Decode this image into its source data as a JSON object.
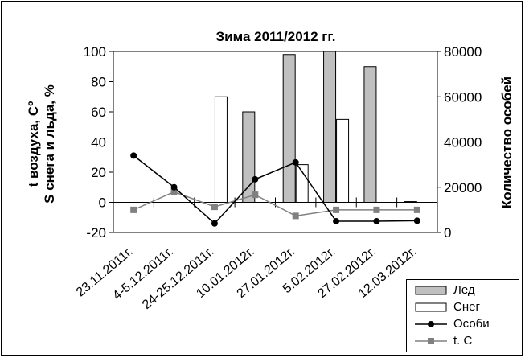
{
  "chart_data": {
    "type": "bar",
    "title": "Зима 2011/2012 гг.",
    "ylabel_left_line1": "t воздуха, Сº",
    "ylabel_left_line2": "S снега и льда, %",
    "ylabel_right": "Количество особей",
    "categories": [
      "23.11.2011г.",
      "4-5.12.2011г.",
      "24-25.12.2011г.",
      "10.01.2012г.",
      "27.01.2012г.",
      "5.02.2012г.",
      "27.02.2012г.",
      "12.03.2012г."
    ],
    "ylim_left": [
      -20,
      100
    ],
    "ylim_right": [
      0,
      80000
    ],
    "yticks_left": [
      "-20",
      "0",
      "20",
      "40",
      "60",
      "80",
      "100"
    ],
    "yticks_right": [
      "0",
      "20000",
      "40000",
      "60000",
      "80000"
    ],
    "series": [
      {
        "name": "Лед",
        "kind": "bar",
        "axis": "left",
        "color": "#c0c0c0",
        "values": [
          0,
          0,
          0,
          60,
          98,
          100,
          90,
          0.5
        ]
      },
      {
        "name": "Снег",
        "kind": "bar",
        "axis": "left",
        "color": "#ffffff",
        "values": [
          0,
          0,
          70,
          0,
          25,
          55,
          0,
          0
        ]
      },
      {
        "name": "Особи",
        "kind": "line",
        "axis": "right",
        "color": "#000000",
        "values": [
          34000,
          20000,
          4000,
          23500,
          31000,
          5000,
          5000,
          5200
        ]
      },
      {
        "name": "t. C",
        "kind": "line",
        "axis": "left",
        "color": "#808080",
        "values": [
          -5,
          7,
          -3,
          5,
          -9,
          -5,
          -5,
          -5
        ]
      }
    ],
    "grid": false,
    "legend_position": "bottom-right"
  }
}
